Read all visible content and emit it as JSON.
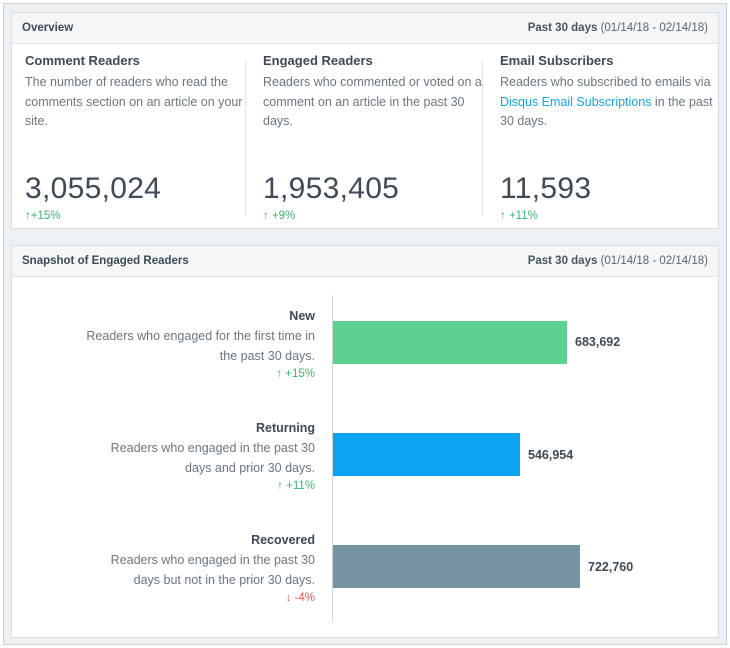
{
  "overview": {
    "title": "Overview",
    "range_label": "Past 30 days",
    "range_dates": "(01/14/18 - 02/14/18)",
    "metrics": [
      {
        "title": "Comment Readers",
        "desc": "The number of readers who read the comments section on an article on your site.",
        "value": "3,055,024",
        "change": "↑+15%"
      },
      {
        "title": "Engaged Readers",
        "desc": "Readers who commented or voted on a comment on an article in the past 30 days.",
        "value": "1,953,405",
        "change": "↑ +9%"
      },
      {
        "title": "Email Subscribers",
        "desc_before": "Readers who subscribed to emails via ",
        "desc_link": "Disqus Email Subscriptions",
        "desc_after": " in the past 30 days.",
        "value": "11,593",
        "change": "↑ +11%"
      }
    ]
  },
  "snapshot": {
    "title": "Snapshot of Engaged Readers",
    "range_label": "Past 30 days",
    "range_dates": "(01/14/18 - 02/14/18)",
    "rows": [
      {
        "name": "New",
        "desc": "Readers who engaged for the first time in the past 30 days.",
        "change": "↑ +15%",
        "value_label": "683,692"
      },
      {
        "name": "Returning",
        "desc": "Readers who engaged in the past 30 days and prior 30 days.",
        "change": "↑ +11%",
        "value_label": "546,954"
      },
      {
        "name": "Recovered",
        "desc": "Readers who engaged in the past 30 days but not in the prior 30 days.",
        "change": "↓ -4%",
        "value_label": "722,760"
      }
    ]
  },
  "chart_data": {
    "type": "bar",
    "orientation": "horizontal",
    "categories": [
      "New",
      "Returning",
      "Recovered"
    ],
    "values": [
      683692,
      546954,
      722760
    ],
    "colors": [
      "#5ed08f",
      "#0ba4f2",
      "#7593a1"
    ]
  }
}
